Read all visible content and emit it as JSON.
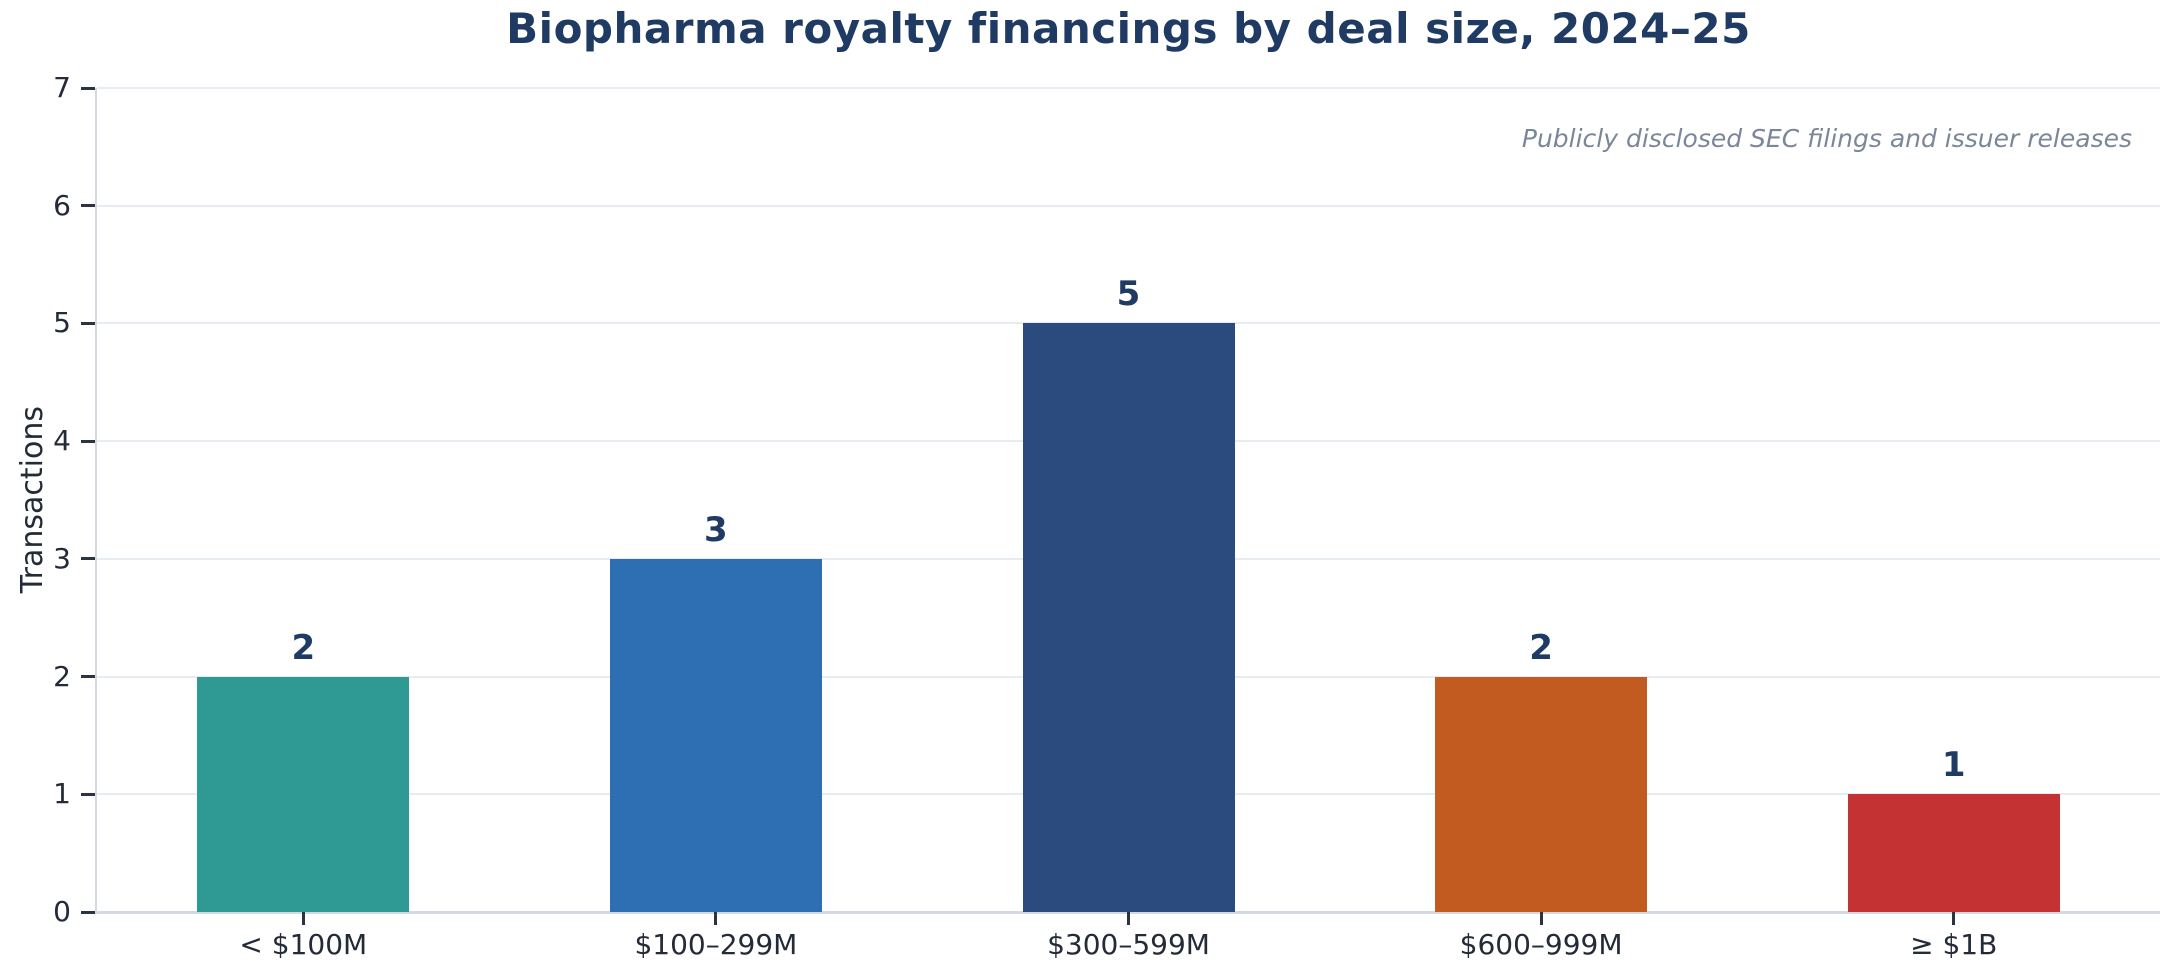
{
  "chart_data": {
    "type": "bar",
    "title": "Biopharma royalty financings by deal size, 2024–25",
    "annotation": "Publicly disclosed SEC filings and issuer releases",
    "ylabel": "Transactions",
    "xlabel": "",
    "categories": [
      "< $100M",
      "$100–299M",
      "$300–599M",
      "$600–999M",
      "≥ $1B"
    ],
    "values": [
      2,
      3,
      5,
      2,
      1
    ],
    "bar_colors": [
      "#2F9A94",
      "#2D6FB2",
      "#2B4B7E",
      "#C25B20",
      "#C43233"
    ],
    "ylim": [
      0,
      7
    ],
    "yticks": [
      0,
      1,
      2,
      3,
      4,
      5,
      6,
      7
    ],
    "grid": "horizontal",
    "legend": "none",
    "value_labels": true,
    "colors": {
      "title": "#1F3B63",
      "value_label": "#1F3B63",
      "tick_label": "#232B38",
      "axis_line": "#D2D9E3",
      "gridline": "#E7ECF3",
      "tick_mark": "#2B3440",
      "annotation": "#7B8799",
      "background": "#FFFFFF"
    }
  }
}
